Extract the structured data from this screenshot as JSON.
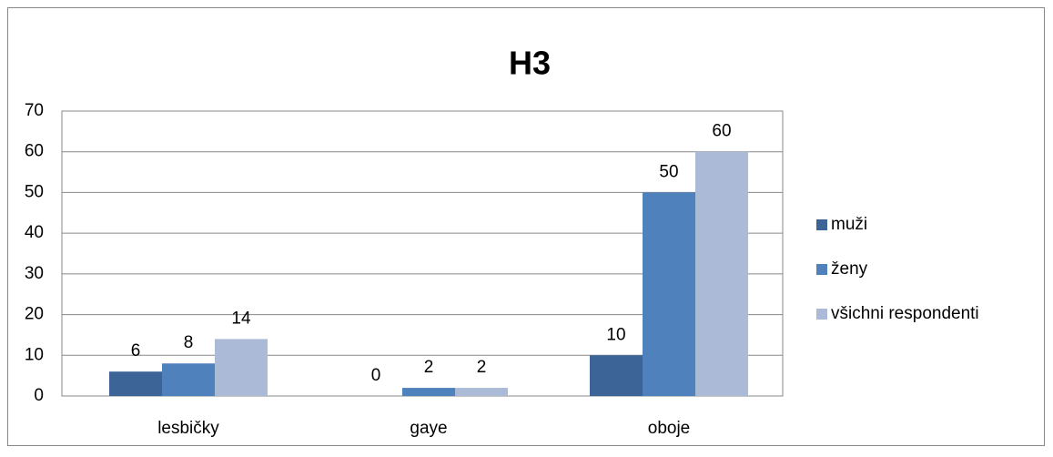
{
  "chart_data": {
    "type": "bar",
    "title": "H3",
    "categories": [
      "lesbičky",
      "gaye",
      "oboje"
    ],
    "series": [
      {
        "name": "muži",
        "color": "#3c6496",
        "values": [
          6,
          0,
          10
        ]
      },
      {
        "name": "ženy",
        "color": "#4f81bd",
        "values": [
          8,
          2,
          50
        ]
      },
      {
        "name": "všichni respondenti",
        "color": "#aabad7",
        "values": [
          14,
          2,
          60
        ]
      }
    ],
    "ylim": [
      0,
      70
    ],
    "yticks": [
      0,
      10,
      20,
      30,
      40,
      50,
      60,
      70
    ],
    "grid": true,
    "legend": "right"
  }
}
